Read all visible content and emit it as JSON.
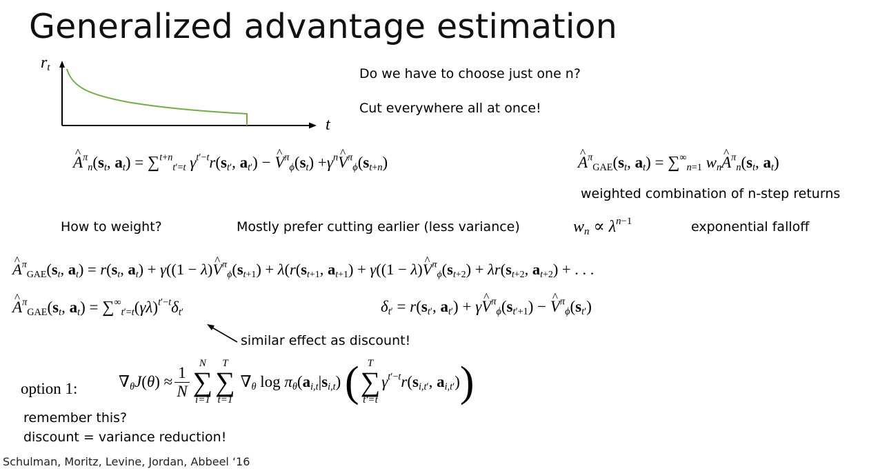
{
  "title": "Generalized advantage estimation",
  "plot": {
    "y_label": "r",
    "y_label_sub": "t",
    "x_label": "t",
    "curve_color": "#70ad47"
  },
  "question": "Do we have to choose just one n?",
  "answer": "Cut everywhere all at once!",
  "caption_weighted": "weighted combination of n-step returns",
  "how_to_weight": "How to weight?",
  "prefer_cutting": "Mostly prefer cutting earlier (less variance)",
  "exp_falloff": "exponential falloff",
  "similar_effect": "similar effect as discount!",
  "option1": "option 1:",
  "remember": "remember this?",
  "discount_note": "discount = variance reduction!",
  "citation": "Schulman, Moritz, Levine, Jordan, Abbeel ‘16"
}
